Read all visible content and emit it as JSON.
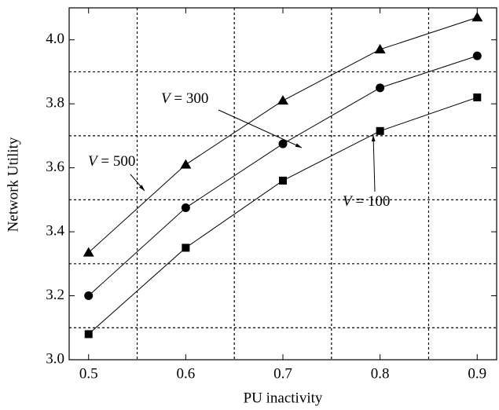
{
  "chart_data": {
    "type": "line",
    "x_label": "PU inactivity",
    "y_label": "Network Utility",
    "x": [
      0.5,
      0.6,
      0.7,
      0.8,
      0.9
    ],
    "series": [
      {
        "marker": "triangle",
        "color": "#000000",
        "values": [
          3.335,
          3.61,
          3.81,
          3.97,
          4.07
        ]
      },
      {
        "marker": "circle",
        "color": "#000000",
        "values": [
          3.2,
          3.475,
          3.675,
          3.85,
          3.95
        ]
      },
      {
        "marker": "square",
        "color": "#000000",
        "values": [
          3.08,
          3.35,
          3.56,
          3.715,
          3.82
        ]
      }
    ],
    "xlim": [
      0.48,
      0.92
    ],
    "ylim": [
      3.0,
      4.1
    ],
    "xticks": [
      0.5,
      0.6,
      0.7,
      0.8,
      0.9
    ],
    "yticks": [
      {
        "value": 3.0,
        "label": "3.0"
      },
      3.2,
      3.4,
      3.6,
      3.8,
      {
        "value": 4.0,
        "label": "4.0"
      }
    ],
    "xgrid": [
      0.55,
      0.65,
      0.75,
      0.85
    ],
    "ygrid": [
      3.1,
      3.3,
      3.5,
      3.7,
      3.9
    ],
    "annotations": [
      "V = 300",
      "V = 500",
      "V = 100"
    ]
  }
}
